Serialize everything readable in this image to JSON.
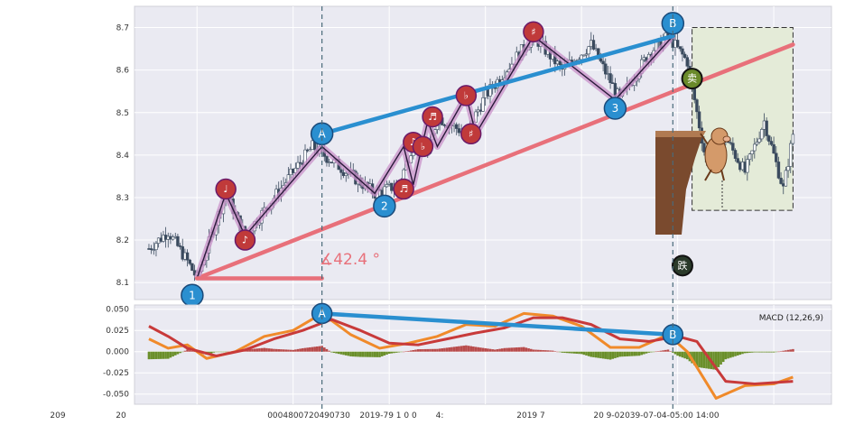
{
  "chart_data": [
    {
      "type": "candlestick",
      "panel": "price",
      "title": "",
      "xlabel": "",
      "ylabel": "",
      "ylim": [
        8.06,
        8.75
      ],
      "yticks": [
        "8.1",
        "8.2",
        "8.3",
        "8.4",
        "8.5",
        "8.6",
        "8.7"
      ],
      "xticks": [
        "209",
        "20",
        "0004800720490730",
        "2019-79 1 0 0",
        "4:",
        "2019 7",
        "20 9-02039-07-04-05:00 14:00"
      ],
      "grid": true,
      "price_path": [
        {
          "t": 0,
          "p": 8.18
        },
        {
          "t": 4,
          "p": 8.22
        },
        {
          "t": 8,
          "p": 8.15
        },
        {
          "t": 10,
          "p": 8.11
        },
        {
          "t": 16,
          "p": 8.31
        },
        {
          "t": 20,
          "p": 8.21
        },
        {
          "t": 28,
          "p": 8.33
        },
        {
          "t": 34,
          "p": 8.42
        },
        {
          "t": 40,
          "p": 8.37
        },
        {
          "t": 47,
          "p": 8.31
        },
        {
          "t": 52,
          "p": 8.33
        },
        {
          "t": 55,
          "p": 8.43
        },
        {
          "t": 58,
          "p": 8.4
        },
        {
          "t": 60,
          "p": 8.49
        },
        {
          "t": 66,
          "p": 8.45
        },
        {
          "t": 70,
          "p": 8.54
        },
        {
          "t": 80,
          "p": 8.68
        },
        {
          "t": 86,
          "p": 8.6
        },
        {
          "t": 92,
          "p": 8.66
        },
        {
          "t": 98,
          "p": 8.53
        },
        {
          "t": 104,
          "p": 8.64
        },
        {
          "t": 108,
          "p": 8.68
        },
        {
          "t": 112,
          "p": 8.62
        },
        {
          "t": 116,
          "p": 8.38
        },
        {
          "t": 120,
          "p": 8.44
        },
        {
          "t": 124,
          "p": 8.36
        },
        {
          "t": 128,
          "p": 8.48
        },
        {
          "t": 132,
          "p": 8.32
        },
        {
          "t": 134,
          "p": 8.45
        }
      ],
      "zigzag": [
        {
          "t": 10,
          "p": 8.11
        },
        {
          "t": 16,
          "p": 8.31
        },
        {
          "t": 20,
          "p": 8.21
        },
        {
          "t": 36,
          "p": 8.42
        },
        {
          "t": 47,
          "p": 8.31
        },
        {
          "t": 53,
          "p": 8.42
        },
        {
          "t": 55,
          "p": 8.33
        },
        {
          "t": 58,
          "p": 8.48
        },
        {
          "t": 60,
          "p": 8.42
        },
        {
          "t": 66,
          "p": 8.54
        },
        {
          "t": 68,
          "p": 8.45
        },
        {
          "t": 80,
          "p": 8.68
        },
        {
          "t": 97,
          "p": 8.53
        },
        {
          "t": 109,
          "p": 8.68
        }
      ],
      "trendlines": [
        {
          "name": "support",
          "color": "#e8707a",
          "from": {
            "t": 10,
            "p": 8.11
          },
          "to": {
            "t": 134,
            "p": 8.66
          }
        },
        {
          "name": "resistance",
          "color": "#2a8fd0",
          "from": {
            "t": 36,
            "p": 8.45
          },
          "to": {
            "t": 109,
            "p": 8.68
          }
        },
        {
          "name": "angle-base",
          "color": "#e8707a",
          "from": {
            "t": 10,
            "p": 8.11
          },
          "to": {
            "t": 36,
            "p": 8.11
          }
        }
      ],
      "angle_label": "∡42.4 °",
      "point_labels": [
        {
          "text": "1",
          "t": 9,
          "p": 8.07
        },
        {
          "text": "A",
          "t": 36,
          "p": 8.45
        },
        {
          "text": "2",
          "t": 49,
          "p": 8.28
        },
        {
          "text": "3",
          "t": 97,
          "p": 8.51
        },
        {
          "text": "B",
          "t": 109,
          "p": 8.71
        }
      ],
      "note_markers": [
        {
          "text": "♩",
          "t": 16,
          "p": 8.32
        },
        {
          "text": "♪",
          "t": 20,
          "p": 8.2
        },
        {
          "text": "♬",
          "t": 53,
          "p": 8.32
        },
        {
          "text": "♫",
          "t": 55,
          "p": 8.43
        },
        {
          "text": "♭",
          "t": 57,
          "p": 8.42
        },
        {
          "text": "♬",
          "t": 59,
          "p": 8.49
        },
        {
          "text": "♭",
          "t": 66,
          "p": 8.54
        },
        {
          "text": "♯",
          "t": 67,
          "p": 8.45
        },
        {
          "text": "♯",
          "t": 80,
          "p": 8.69
        }
      ],
      "event_markers": [
        {
          "text": "卖",
          "t": 113,
          "p": 8.58
        },
        {
          "text": "跌",
          "t": 111,
          "p": 8.14
        }
      ],
      "vertical_markers": [
        "A",
        "B"
      ],
      "forecast_box": {
        "t_from": 113,
        "t_to": 134,
        "p_from": 8.27,
        "p_to": 8.7
      }
    },
    {
      "type": "line",
      "panel": "indicator",
      "title": "",
      "legend_label": "MACD (12,26,9)",
      "ylim": [
        -0.062,
        0.055
      ],
      "yticks": [
        "0.050",
        "0.025",
        "0.000",
        "-0.025",
        "-0.050"
      ],
      "series": [
        {
          "color": "#f08a2a",
          "values": [
            {
              "t": 0,
              "v": 0.015
            },
            {
              "t": 4,
              "v": 0.004
            },
            {
              "t": 8,
              "v": 0.008
            },
            {
              "t": 12,
              "v": -0.008
            },
            {
              "t": 18,
              "v": 0.0
            },
            {
              "t": 24,
              "v": 0.018
            },
            {
              "t": 30,
              "v": 0.025
            },
            {
              "t": 36,
              "v": 0.045
            },
            {
              "t": 42,
              "v": 0.02
            },
            {
              "t": 48,
              "v": 0.004
            },
            {
              "t": 54,
              "v": 0.01
            },
            {
              "t": 60,
              "v": 0.018
            },
            {
              "t": 66,
              "v": 0.032
            },
            {
              "t": 72,
              "v": 0.03
            },
            {
              "t": 78,
              "v": 0.045
            },
            {
              "t": 84,
              "v": 0.042
            },
            {
              "t": 90,
              "v": 0.03
            },
            {
              "t": 96,
              "v": 0.005
            },
            {
              "t": 102,
              "v": 0.005
            },
            {
              "t": 108,
              "v": 0.02
            },
            {
              "t": 112,
              "v": 0.0
            },
            {
              "t": 118,
              "v": -0.055
            },
            {
              "t": 124,
              "v": -0.04
            },
            {
              "t": 130,
              "v": -0.038
            },
            {
              "t": 134,
              "v": -0.03
            }
          ]
        },
        {
          "color": "#c83a3a",
          "values": [
            {
              "t": 0,
              "v": 0.03
            },
            {
              "t": 4,
              "v": 0.018
            },
            {
              "t": 8,
              "v": 0.004
            },
            {
              "t": 14,
              "v": -0.005
            },
            {
              "t": 20,
              "v": 0.002
            },
            {
              "t": 26,
              "v": 0.015
            },
            {
              "t": 32,
              "v": 0.025
            },
            {
              "t": 38,
              "v": 0.038
            },
            {
              "t": 44,
              "v": 0.025
            },
            {
              "t": 50,
              "v": 0.01
            },
            {
              "t": 56,
              "v": 0.008
            },
            {
              "t": 62,
              "v": 0.015
            },
            {
              "t": 68,
              "v": 0.022
            },
            {
              "t": 74,
              "v": 0.028
            },
            {
              "t": 80,
              "v": 0.04
            },
            {
              "t": 86,
              "v": 0.04
            },
            {
              "t": 92,
              "v": 0.032
            },
            {
              "t": 98,
              "v": 0.015
            },
            {
              "t": 104,
              "v": 0.012
            },
            {
              "t": 110,
              "v": 0.018
            },
            {
              "t": 114,
              "v": 0.012
            },
            {
              "t": 120,
              "v": -0.035
            },
            {
              "t": 126,
              "v": -0.038
            },
            {
              "t": 134,
              "v": -0.035
            }
          ]
        }
      ],
      "histogram": {
        "pos_color": "#b84a4a",
        "neg_color": "#6a8f2a"
      },
      "trendline": {
        "color": "#2a8fd0",
        "from": {
          "t": 36,
          "v": 0.045
        },
        "to": {
          "t": 109,
          "v": 0.02
        }
      },
      "point_labels": [
        {
          "text": "A",
          "t": 36,
          "v": 0.045
        },
        {
          "text": "B",
          "t": 109,
          "v": 0.02
        }
      ]
    }
  ],
  "colors": {
    "marker_blue": "#2a8fd0",
    "marker_red": "#c03a3a",
    "marker_green": "#6a8a2a",
    "forecast_fill": "#e4ebd8"
  }
}
